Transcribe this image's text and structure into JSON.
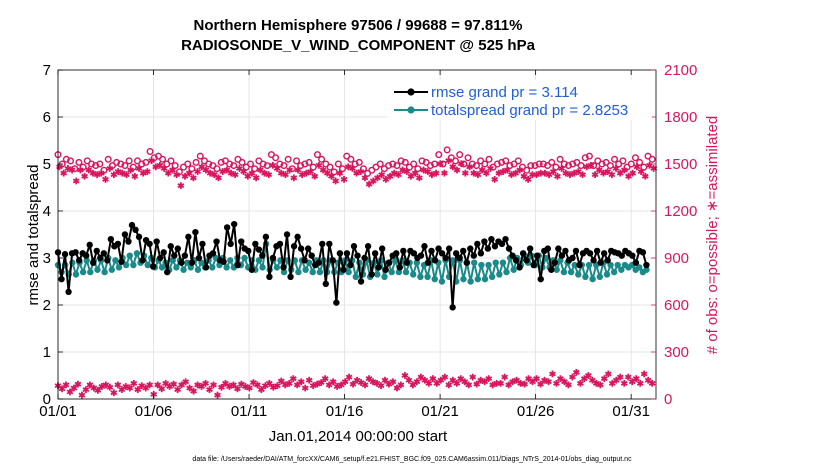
{
  "chart_data": {
    "type": "line",
    "title_line1": "Northern Hemisphere 97506 / 99688 = 97.811%",
    "title_line2": "RADIOSONDE_V_WIND_COMPONENT @ 525 hPa",
    "xlabel": "Jan.01,2014 00:00:00 start",
    "ylabel_left": "rmse and totalspread",
    "ylabel_right": "# of obs: o=possible; ∗=assimilated",
    "xlim": [
      1,
      32.3
    ],
    "ylim_left": [
      0,
      7
    ],
    "ylim_right": [
      0,
      2100
    ],
    "x_ticks": [
      1,
      6,
      11,
      16,
      21,
      26,
      31
    ],
    "x_tick_labels": [
      "01/01",
      "01/06",
      "01/11",
      "01/16",
      "01/21",
      "01/26",
      "01/31"
    ],
    "y_left_ticks": [
      "0",
      "1",
      "2",
      "3",
      "4",
      "5",
      "6",
      "7"
    ],
    "y_right_ticks": [
      "0",
      "300",
      "600",
      "900",
      "1200",
      "1500",
      "1800",
      "2100"
    ],
    "grid": true,
    "colors": {
      "rmse": "#000000",
      "spread": "#1b8a8a",
      "obs": "#d6175f",
      "legend_text": "#1f5fd6",
      "grid": "#dcdcdc"
    },
    "series": [
      {
        "name": "rmse grand pr = 3.114",
        "axis": "left",
        "values": [
          3.12,
          2.55,
          3.08,
          2.28,
          3.1,
          3.12,
          2.95,
          3.1,
          3.05,
          3.28,
          2.9,
          3.15,
          3.0,
          3.1,
          2.95,
          3.4,
          3.25,
          3.3,
          2.92,
          3.5,
          3.35,
          3.7,
          3.6,
          3.45,
          2.95,
          3.38,
          3.3,
          2.82,
          3.35,
          3.0,
          3.12,
          2.7,
          3.25,
          3.05,
          3.2,
          2.9,
          3.05,
          3.45,
          2.9,
          3.55,
          3.0,
          3.3,
          2.8,
          3.05,
          3.1,
          3.35,
          2.95,
          2.92,
          3.65,
          3.3,
          3.72,
          2.85,
          3.35,
          3.2,
          3.15,
          2.75,
          3.3,
          3.18,
          3.05,
          3.45,
          2.6,
          3.0,
          3.25,
          3.3,
          2.8,
          3.5,
          2.6,
          3.25,
          3.45,
          3.2,
          2.95,
          3.2,
          3.05,
          2.85,
          2.9,
          3.3,
          2.45,
          3.3,
          2.95,
          2.05,
          3.1,
          2.75,
          3.1,
          2.85,
          3.25,
          3.05,
          2.5,
          3.0,
          3.25,
          2.65,
          3.1,
          2.8,
          3.2,
          2.75,
          2.9,
          3.05,
          3.1,
          2.8,
          3.15,
          2.9,
          3.15,
          3.1,
          3.0,
          3.05,
          3.25,
          2.9,
          3.15,
          2.95,
          3.2,
          3.1,
          3.0,
          3.2,
          1.95,
          3.1,
          3.0,
          3.15,
          2.9,
          3.2,
          3.05,
          3.3,
          3.1,
          3.35,
          3.2,
          3.4,
          3.25,
          3.35,
          3.3,
          3.4,
          3.2,
          3.05,
          2.95,
          2.8,
          3.1,
          2.95,
          3.2,
          2.85,
          3.05,
          2.55,
          3.15,
          3.2,
          2.75,
          2.9,
          3.2,
          3.05,
          3.15,
          2.95,
          3.0,
          3.15,
          2.85,
          3.1,
          3.15,
          3.1,
          2.95,
          3.15,
          2.9,
          3.1,
          2.95,
          3.15,
          3.12,
          3.1,
          3.05,
          3.15,
          3.1,
          3.05,
          2.9,
          3.15,
          3.12,
          2.85
        ]
      },
      {
        "name": "totalspread grand pr = 2.8253",
        "axis": "left",
        "values": [
          2.85,
          2.7,
          2.85,
          2.65,
          2.9,
          2.65,
          2.9,
          2.7,
          2.95,
          2.7,
          2.95,
          2.75,
          2.95,
          2.7,
          3.0,
          2.75,
          2.95,
          2.8,
          3.0,
          2.85,
          3.05,
          2.85,
          3.1,
          2.9,
          3.05,
          2.85,
          3.0,
          2.8,
          2.95,
          2.8,
          2.9,
          2.75,
          2.95,
          2.8,
          2.95,
          2.75,
          2.9,
          2.8,
          2.95,
          2.75,
          2.9,
          2.8,
          2.95,
          2.8,
          3.0,
          2.85,
          3.0,
          2.8,
          2.95,
          2.8,
          3.0,
          2.85,
          3.0,
          2.8,
          2.95,
          2.75,
          2.95,
          2.8,
          3.3,
          2.75,
          2.95,
          2.8,
          2.95,
          2.7,
          2.95,
          2.75,
          2.95,
          2.7,
          2.95,
          2.75,
          2.9,
          2.7,
          2.95,
          2.7,
          2.95,
          2.7,
          2.95,
          2.7,
          2.9,
          2.7,
          2.95,
          2.7,
          2.95,
          2.6,
          2.9,
          2.65,
          2.95,
          2.6,
          2.9,
          2.65,
          2.95,
          2.6,
          2.9,
          2.7,
          2.95,
          2.7,
          2.95,
          2.7,
          2.9,
          2.65,
          2.9,
          2.6,
          2.85,
          2.6,
          2.95,
          2.55,
          2.9,
          2.5,
          2.95,
          2.6,
          2.95,
          2.5,
          2.95,
          2.55,
          2.9,
          2.5,
          2.9,
          2.55,
          2.85,
          2.55,
          2.85,
          2.6,
          2.9,
          2.65,
          2.9,
          2.7,
          3.0,
          2.75,
          3.0,
          2.85,
          3.05,
          2.9,
          3.05,
          2.85,
          3.05,
          2.8,
          3.0,
          2.8,
          2.95,
          2.75,
          2.95,
          2.7,
          2.9,
          2.7,
          2.85,
          2.65,
          2.85,
          2.6,
          2.85,
          2.55,
          2.85,
          2.6,
          2.9,
          2.65,
          2.85,
          2.7,
          2.85,
          2.75,
          2.85,
          2.8,
          2.85,
          2.75,
          2.8,
          2.7,
          2.75
        ]
      }
    ],
    "obs_possible": {
      "axis": "right",
      "values": [
        1560,
        1500,
        1530,
        1520,
        1470,
        1510,
        1480,
        1520,
        1500,
        1490,
        1500,
        1460,
        1530,
        1490,
        1510,
        1500,
        1490,
        1520,
        1480,
        1520,
        1500,
        1510,
        1580,
        1540,
        1550,
        1530,
        1500,
        1520,
        1490,
        1450,
        1480,
        1500,
        1470,
        1510,
        1550,
        1520,
        1500,
        1490,
        1470,
        1510,
        1520,
        1500,
        1490,
        1530,
        1510,
        1480,
        1500,
        1470,
        1520,
        1500,
        1490,
        1560,
        1540,
        1500,
        1490,
        1530,
        1470,
        1520,
        1490,
        1500,
        1510,
        1480,
        1560,
        1530,
        1500,
        1480,
        1450,
        1500,
        1470,
        1550,
        1530,
        1500,
        1510,
        1470,
        1440,
        1460,
        1480,
        1500,
        1470,
        1490,
        1500,
        1490,
        1520,
        1510,
        1480,
        1500,
        1470,
        1520,
        1510,
        1490,
        1500,
        1560,
        1500,
        1590,
        1540,
        1520,
        1560,
        1500,
        1540,
        1500,
        1490,
        1520,
        1500,
        1530,
        1480,
        1500,
        1510,
        1520,
        1490,
        1500,
        1520,
        1480,
        1460,
        1490,
        1490,
        1500,
        1500,
        1490,
        1510,
        1480,
        1530,
        1500,
        1490,
        1500,
        1510,
        1490,
        1540,
        1550,
        1490,
        1520,
        1500,
        1510,
        1490,
        1530,
        1500,
        1520,
        1480,
        1500,
        1540,
        1510,
        1480,
        1550,
        1530
      ]
    },
    "obs_assimilated": {
      "axis": "right",
      "values": [
        1520,
        1480,
        1510,
        1500,
        1430,
        1500,
        1460,
        1500,
        1480,
        1470,
        1480,
        1440,
        1510,
        1470,
        1490,
        1480,
        1470,
        1500,
        1460,
        1510,
        1480,
        1490,
        1560,
        1520,
        1530,
        1510,
        1480,
        1500,
        1470,
        1400,
        1460,
        1480,
        1450,
        1490,
        1520,
        1500,
        1480,
        1470,
        1450,
        1490,
        1500,
        1480,
        1470,
        1510,
        1490,
        1460,
        1480,
        1450,
        1500,
        1480,
        1470,
        1530,
        1510,
        1480,
        1470,
        1500,
        1450,
        1500,
        1470,
        1480,
        1490,
        1460,
        1530,
        1500,
        1480,
        1460,
        1430,
        1480,
        1440,
        1520,
        1510,
        1480,
        1490,
        1450,
        1410,
        1430,
        1450,
        1470,
        1440,
        1460,
        1480,
        1470,
        1500,
        1490,
        1460,
        1480,
        1450,
        1500,
        1490,
        1470,
        1480,
        1540,
        1480,
        1560,
        1520,
        1500,
        1540,
        1480,
        1520,
        1480,
        1470,
        1500,
        1480,
        1510,
        1440,
        1480,
        1490,
        1500,
        1470,
        1480,
        1500,
        1460,
        1440,
        1470,
        1470,
        1480,
        1480,
        1470,
        1490,
        1460,
        1510,
        1480,
        1470,
        1480,
        1490,
        1470,
        1520,
        1530,
        1470,
        1500,
        1480,
        1490,
        1470,
        1510,
        1480,
        1500,
        1460,
        1480,
        1520,
        1490,
        1460,
        1530,
        1510
      ]
    },
    "obs_low": {
      "axis": "right",
      "values": [
        85,
        65,
        90,
        45,
        70,
        95,
        25,
        60,
        90,
        70,
        55,
        80,
        90,
        75,
        40,
        90,
        60,
        80,
        70,
        100,
        60,
        85,
        70,
        90,
        30,
        90,
        65,
        100,
        80,
        95,
        60,
        90,
        110,
        70,
        50,
        90,
        80,
        100,
        60,
        90,
        25,
        75,
        100,
        80,
        90,
        65,
        95,
        80,
        70,
        105,
        90,
        60,
        85,
        100,
        75,
        85,
        115,
        90,
        100,
        130,
        90,
        110,
        70,
        120,
        85,
        95,
        105,
        130,
        90,
        110,
        80,
        90,
        110,
        140,
        95,
        120,
        105,
        90,
        130,
        110,
        100,
        85,
        120,
        95,
        110,
        70,
        90,
        150,
        120,
        90,
        110,
        140,
        120,
        100,
        130,
        100,
        120,
        140,
        90,
        120,
        100,
        130,
        110,
        90,
        140,
        95,
        120,
        110,
        130,
        90,
        100,
        100,
        140,
        90,
        110,
        120,
        100,
        95,
        130,
        110,
        130,
        95,
        120,
        110,
        160,
        100,
        130,
        110,
        90,
        140,
        170,
        100,
        130,
        150,
        120,
        100,
        90,
        130,
        160,
        100,
        120,
        140,
        100,
        140,
        110,
        130,
        100,
        160,
        120,
        100
      ]
    }
  },
  "footer": {
    "data_file": "data file: /Users/raeder/DAI/ATM_forcXX/CAM6_setup/f.e21.FHIST_BGC.f09_025.CAM6assim.011/Diags_NTrS_2014-01/obs_diag_output.nc"
  }
}
